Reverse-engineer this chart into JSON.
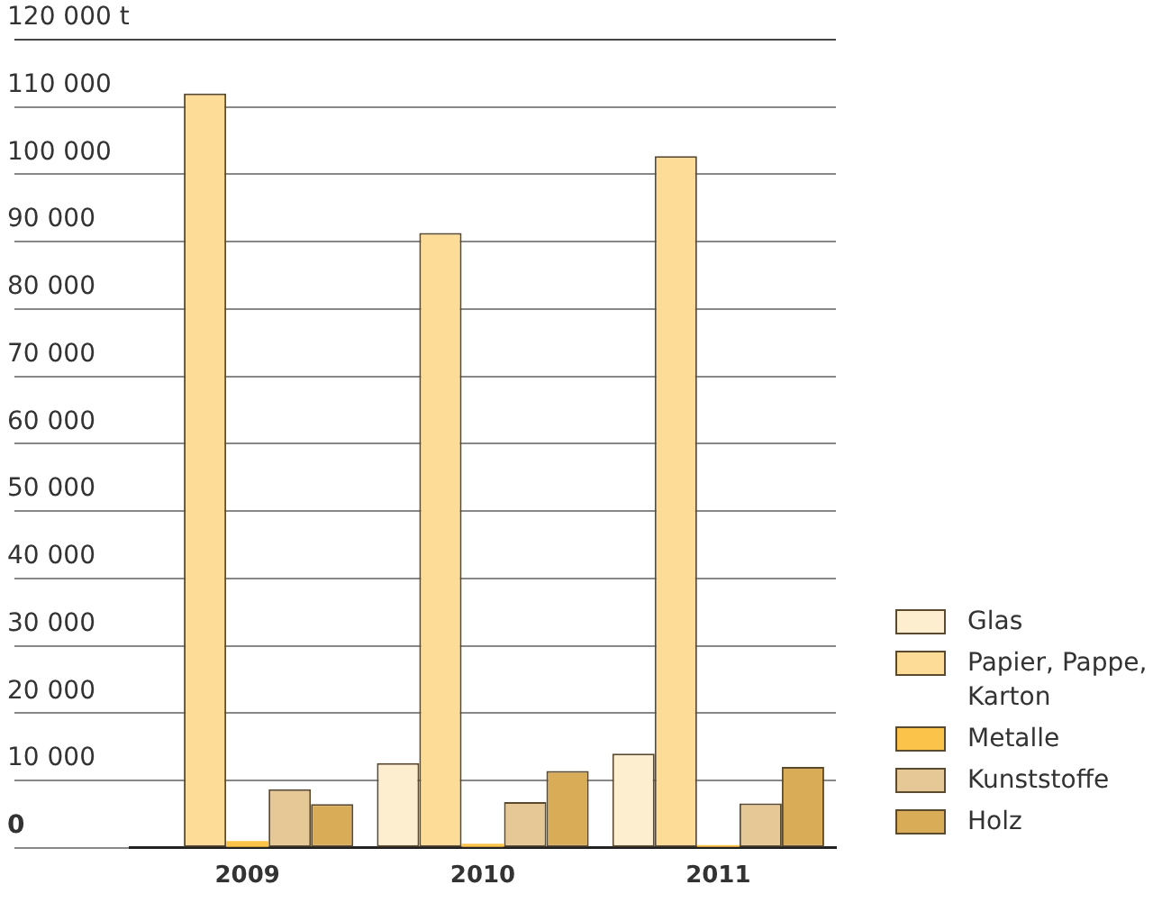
{
  "chart_data": {
    "type": "bar",
    "categories": [
      "2009",
      "2010",
      "2011"
    ],
    "series": [
      {
        "name": "Glas",
        "color": "#fdeed0",
        "values": [
          null,
          12600,
          14000
        ]
      },
      {
        "name": "Papier, Pappe, Karton",
        "color": "#fddc98",
        "values": [
          112000,
          91300,
          102700
        ]
      },
      {
        "name": "Metalle",
        "color": "#fcc34a",
        "values": [
          1000,
          600,
          400
        ]
      },
      {
        "name": "Kunststoffe",
        "color": "#e6c896",
        "values": [
          8700,
          6800,
          6600
        ]
      },
      {
        "name": "Holz",
        "color": "#d9ad58",
        "values": [
          6500,
          11400,
          12000
        ]
      }
    ],
    "ylim": [
      0,
      120000
    ],
    "yticks": [
      {
        "value": 0,
        "label": "0"
      },
      {
        "value": 10000,
        "label": "10 000"
      },
      {
        "value": 20000,
        "label": "20 000"
      },
      {
        "value": 30000,
        "label": "30 000"
      },
      {
        "value": 40000,
        "label": "40 000"
      },
      {
        "value": 50000,
        "label": "50 000"
      },
      {
        "value": 60000,
        "label": "60 000"
      },
      {
        "value": 70000,
        "label": "70 000"
      },
      {
        "value": 80000,
        "label": "80 000"
      },
      {
        "value": 90000,
        "label": "90 000"
      },
      {
        "value": 100000,
        "label": "100 000"
      },
      {
        "value": 110000,
        "label": "110 000"
      },
      {
        "value": 120000,
        "label": "120 000 t"
      }
    ],
    "grid": "y",
    "legend": "bottom right"
  }
}
